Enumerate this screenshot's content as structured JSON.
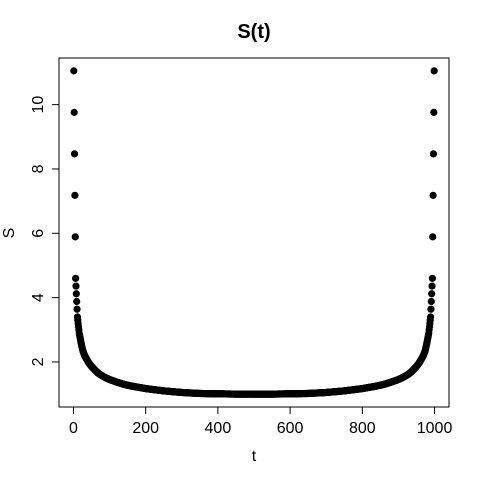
{
  "chart_data": {
    "type": "scatter",
    "title": "S(t)",
    "xlabel": "t",
    "ylabel": "S",
    "xlim": [
      -40,
      1040
    ],
    "ylim": [
      0.6,
      11.45
    ],
    "x_ticks": [
      0,
      200,
      400,
      600,
      800,
      1000
    ],
    "y_ticks": [
      2,
      4,
      6,
      8,
      10
    ],
    "grid": false,
    "legend": "none",
    "point_color": "#000000",
    "series": [
      {
        "x": [
          1,
          6,
          11,
          16,
          21,
          26,
          31,
          36,
          41,
          46,
          51,
          61,
          71,
          81,
          91,
          101,
          121,
          141,
          161,
          181,
          201,
          251,
          301,
          351,
          401,
          451,
          500,
          549,
          599,
          649,
          699,
          749,
          799,
          819,
          839,
          859,
          879,
          899,
          909,
          919,
          929,
          939,
          949,
          954,
          959,
          964,
          969,
          974,
          979,
          984,
          989,
          994,
          999
        ],
        "y": [
          11.05,
          4.6,
          3.4,
          2.9,
          2.6,
          2.35,
          2.2,
          2.1,
          2.0,
          1.92,
          1.85,
          1.73,
          1.63,
          1.56,
          1.5,
          1.45,
          1.37,
          1.3,
          1.25,
          1.21,
          1.17,
          1.1,
          1.05,
          1.02,
          1.01,
          1.0,
          1.0,
          1.0,
          1.01,
          1.02,
          1.05,
          1.1,
          1.17,
          1.21,
          1.25,
          1.3,
          1.37,
          1.45,
          1.5,
          1.56,
          1.63,
          1.73,
          1.85,
          1.92,
          2.0,
          2.1,
          2.2,
          2.35,
          2.6,
          2.9,
          3.4,
          4.6,
          11.05
        ]
      }
    ]
  }
}
